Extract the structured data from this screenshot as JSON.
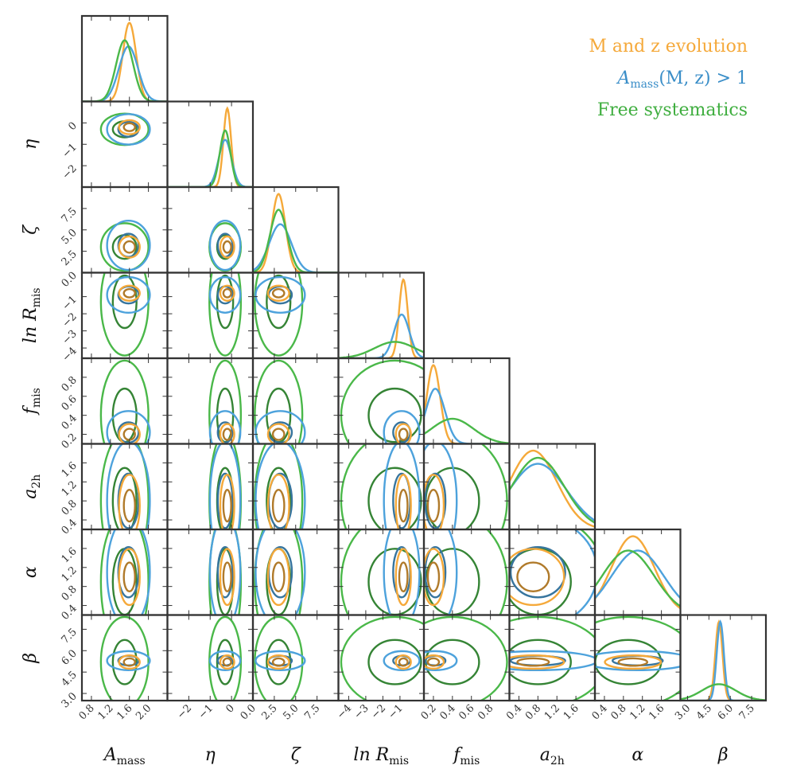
{
  "chart_data": {
    "type": "corner",
    "parameters": [
      {
        "key": "A_mass",
        "label": "A",
        "label_sub": "mass",
        "range": [
          0.6,
          2.4
        ],
        "ticks": [
          0.8,
          1.2,
          1.6,
          2.0
        ],
        "tick_labels": [
          "0.8",
          "1.2",
          "1.6",
          "2.0"
        ]
      },
      {
        "key": "eta",
        "label": "η",
        "label_sub": "",
        "range": [
          -3.0,
          1.0
        ],
        "ticks": [
          -2,
          -1,
          0
        ],
        "tick_labels": [
          "−2",
          "−1",
          "0"
        ]
      },
      {
        "key": "zeta",
        "label": "ζ",
        "label_sub": "",
        "range": [
          0.0,
          10.0
        ],
        "ticks": [
          0.0,
          2.5,
          5.0,
          7.5
        ],
        "tick_labels": [
          "0.0",
          "2.5",
          "5.0",
          "7.5"
        ]
      },
      {
        "key": "lnRmis",
        "label": "ln R",
        "label_sub": "mis",
        "range": [
          -4.6,
          0.4
        ],
        "ticks": [
          -4,
          -3,
          -2,
          -1
        ],
        "tick_labels": [
          "−4",
          "−3",
          "−2",
          "−1"
        ]
      },
      {
        "key": "fmis",
        "label": "f",
        "label_sub": "mis",
        "range": [
          0.1,
          1.0
        ],
        "ticks": [
          0.2,
          0.4,
          0.6,
          0.8
        ],
        "tick_labels": [
          "0.2",
          "0.4",
          "0.6",
          "0.8"
        ]
      },
      {
        "key": "a2h",
        "label": "a",
        "label_sub": "2h",
        "range": [
          0.2,
          2.0
        ],
        "ticks": [
          0.4,
          0.8,
          1.2,
          1.6
        ],
        "tick_labels": [
          "0.4",
          "0.8",
          "1.2",
          "1.6"
        ]
      },
      {
        "key": "alpha",
        "label": "α",
        "label_sub": "",
        "range": [
          0.2,
          2.0
        ],
        "ticks": [
          0.4,
          0.8,
          1.2,
          1.6
        ],
        "tick_labels": [
          "0.4",
          "0.8",
          "1.2",
          "1.6"
        ]
      },
      {
        "key": "beta",
        "label": "β",
        "label_sub": "",
        "range": [
          2.5,
          8.5
        ],
        "ticks": [
          3.0,
          4.5,
          6.0,
          7.5
        ],
        "tick_labels": [
          "3.0",
          "4.5",
          "6.0",
          "7.5"
        ]
      }
    ],
    "series": [
      {
        "name": "M and z evolution",
        "color": "#f5a93a",
        "mean": [
          1.6,
          -0.2,
          3.0,
          -0.8,
          0.2,
          0.7,
          1.0,
          5.2
        ],
        "sd": [
          0.14,
          0.18,
          0.8,
          0.25,
          0.07,
          0.5,
          0.45,
          0.25
        ],
        "inner_scale": 0.3,
        "outer_scale": 0.6
      },
      {
        "name": "A_mass(M, z) > 1",
        "label": "A",
        "label_sub": "mass",
        "label_suffix": "(M, z) > 1",
        "color": "#4da2dc",
        "mean": [
          1.58,
          -0.3,
          3.2,
          -0.9,
          0.22,
          0.8,
          1.1,
          5.3
        ],
        "sd": [
          0.2,
          0.3,
          1.3,
          0.45,
          0.1,
          0.6,
          0.55,
          0.25
        ],
        "inner_scale": 0.45,
        "outer_scale": 1.0
      },
      {
        "name": "Free systematics",
        "color": "#4ab849",
        "mean": [
          1.5,
          -0.3,
          3.0,
          -1.3,
          0.4,
          0.8,
          0.9,
          5.2
        ],
        "sd": [
          0.18,
          0.25,
          1.0,
          1.2,
          0.22,
          0.55,
          0.55,
          1.2
        ],
        "inner_scale": 0.6,
        "outer_scale": 1.25
      }
    ]
  },
  "legend": {
    "placement": "top-right"
  }
}
